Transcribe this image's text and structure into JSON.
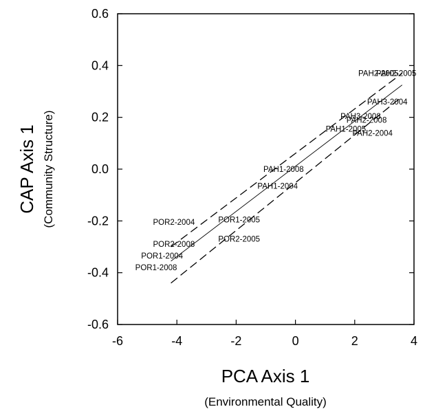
{
  "chart_data": {
    "type": "scatter",
    "xlabel": "PCA Axis 1",
    "xlabel_sub": "(Environmental Quality)",
    "ylabel": "CAP Axis 1",
    "ylabel_sub": "(Community Structure)",
    "xlim": [
      -6,
      4
    ],
    "ylim": [
      -0.6,
      0.6
    ],
    "xticks": [
      -6,
      -4,
      -2,
      0,
      2,
      4
    ],
    "yticks": [
      -0.6,
      -0.4,
      -0.2,
      0.0,
      0.2,
      0.4,
      0.6
    ],
    "ytick_labels": [
      "-0.6",
      "-0.4",
      "-0.2",
      "0.0",
      "0.2",
      "0.4",
      "0.6"
    ],
    "grid": false,
    "points": [
      {
        "label": "PAH2-2005",
        "x": 3.4,
        "y": 0.37
      },
      {
        "label": "PAH2-2005",
        "x": 2.8,
        "y": 0.37
      },
      {
        "label": "PAH3-2004",
        "x": 3.1,
        "y": 0.26
      },
      {
        "label": "PAH3-2008",
        "x": 2.2,
        "y": 0.205
      },
      {
        "label": "PAH2-2008",
        "x": 2.4,
        "y": 0.19
      },
      {
        "label": "PAH1-2005",
        "x": 1.7,
        "y": 0.155
      },
      {
        "label": "PAH2-2004",
        "x": 2.6,
        "y": 0.14
      },
      {
        "label": "PAH1-2008",
        "x": -0.4,
        "y": 0.0
      },
      {
        "label": "PAH1-2004",
        "x": -0.6,
        "y": -0.065
      },
      {
        "label": "POR2-2004",
        "x": -4.1,
        "y": -0.205
      },
      {
        "label": "POR1-2005",
        "x": -1.9,
        "y": -0.195
      },
      {
        "label": "POR2-2005",
        "x": -1.9,
        "y": -0.27
      },
      {
        "label": "POR2-2008",
        "x": -4.1,
        "y": -0.29
      },
      {
        "label": "POR1-2004",
        "x": -4.5,
        "y": -0.335
      },
      {
        "label": "POR1-2008",
        "x": -4.7,
        "y": -0.38
      }
    ],
    "regression_line": {
      "x": [
        -4.2,
        3.6
      ],
      "y": [
        -0.355,
        0.325
      ]
    },
    "confidence_upper": {
      "x": [
        -4.2,
        3.6
      ],
      "y": [
        -0.3,
        0.37
      ]
    },
    "confidence_lower": {
      "x": [
        -4.2,
        3.6
      ],
      "y": [
        -0.44,
        0.28
      ]
    }
  }
}
